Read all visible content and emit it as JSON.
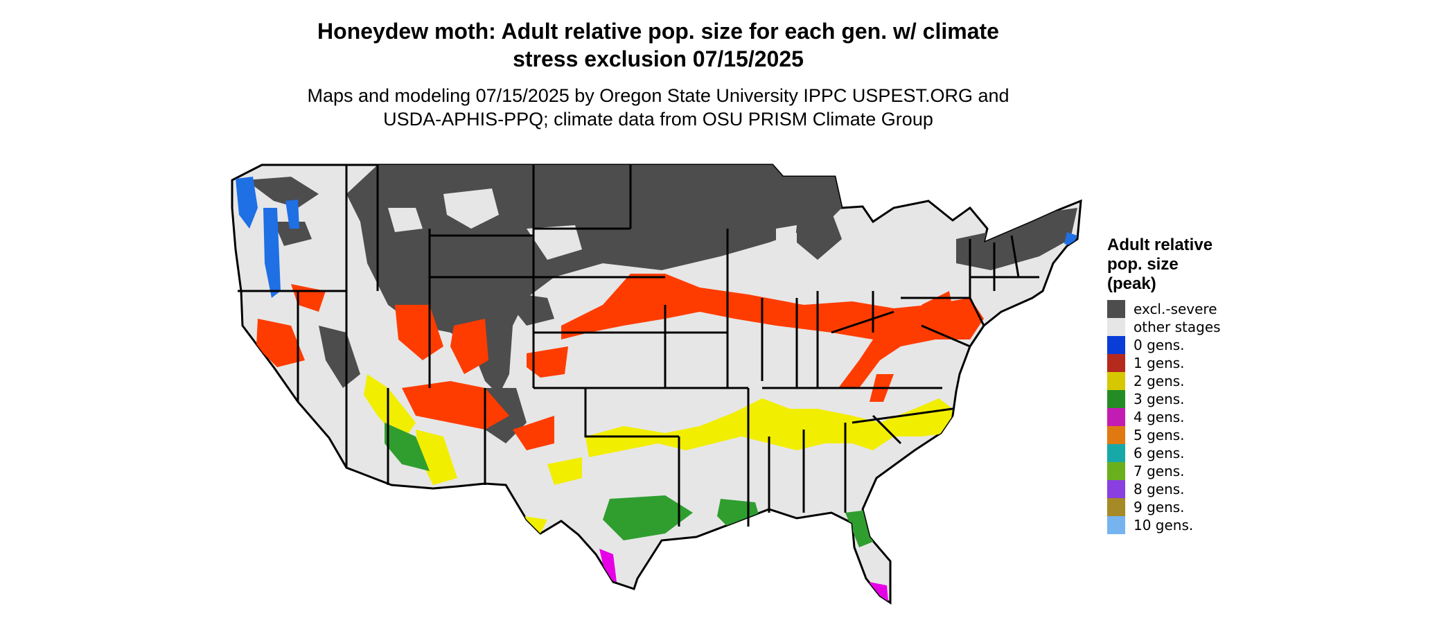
{
  "title": {
    "line1": "Honeydew moth: Adult relative pop. size for each gen. w/ climate",
    "line2": "stress exclusion 07/15/2025"
  },
  "subtitle": {
    "line1": "Maps and modeling 07/15/2025 by Oregon State University IPPC USPEST.ORG and",
    "line2": "USDA-APHIS-PPQ; climate data from OSU PRISM Climate Group"
  },
  "legend": {
    "title_lines": [
      "Adult relative",
      "pop. size",
      "(peak)"
    ],
    "items": [
      {
        "label": "excl.-severe",
        "color": "#4d4d4d"
      },
      {
        "label": "other stages",
        "color": "#e6e6e6"
      },
      {
        "label": "0 gens.",
        "color": "#0a3cd8"
      },
      {
        "label": "1 gens.",
        "color": "#b52a1d"
      },
      {
        "label": "2 gens.",
        "color": "#d6c800"
      },
      {
        "label": "3 gens.",
        "color": "#248c24"
      },
      {
        "label": "4 gens.",
        "color": "#c21cb4"
      },
      {
        "label": "5 gens.",
        "color": "#e07a10"
      },
      {
        "label": "6 gens.",
        "color": "#17a8a8"
      },
      {
        "label": "7 gens.",
        "color": "#6ab01d"
      },
      {
        "label": "8 gens.",
        "color": "#8a3fe0"
      },
      {
        "label": "9 gens.",
        "color": "#a68a26"
      },
      {
        "label": "10 gens.",
        "color": "#76b4f0"
      }
    ]
  },
  "map_colors": {
    "background": "#e6e6e6",
    "excluded": "#4d4d4d",
    "one_gen_highlight": "#ff3c00",
    "two_gen": "#f2ee00",
    "three_gen": "#2f9e2f",
    "four_gen": "#e600e6",
    "zero_gen": "#1f6fe5",
    "border": "#000000"
  }
}
